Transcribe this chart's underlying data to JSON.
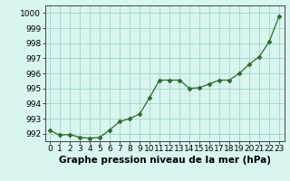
{
  "x": [
    0,
    1,
    2,
    3,
    4,
    5,
    6,
    7,
    8,
    9,
    10,
    11,
    12,
    13,
    14,
    15,
    16,
    17,
    18,
    19,
    20,
    21,
    22,
    23
  ],
  "y": [
    992.2,
    991.9,
    991.95,
    991.75,
    991.7,
    991.75,
    992.25,
    992.8,
    993.0,
    993.3,
    994.4,
    995.55,
    995.55,
    995.55,
    995.0,
    995.05,
    995.3,
    995.55,
    995.55,
    996.0,
    996.6,
    997.1,
    998.1,
    999.8
  ],
  "line_color": "#2d6a2d",
  "marker": "D",
  "marker_size": 2.5,
  "bg_color": "#d8f5f0",
  "grid_color": "#a8d8c8",
  "xlabel": "Graphe pression niveau de la mer (hPa)",
  "xlabel_fontsize": 7.5,
  "ylabel_ticks": [
    992,
    993,
    994,
    995,
    996,
    997,
    998,
    999,
    1000
  ],
  "xtick_labels": [
    "0",
    "1",
    "2",
    "3",
    "4",
    "5",
    "6",
    "7",
    "8",
    "9",
    "10",
    "11",
    "12",
    "13",
    "14",
    "15",
    "16",
    "17",
    "18",
    "19",
    "20",
    "21",
    "22",
    "23"
  ],
  "xlim": [
    -0.5,
    23.5
  ],
  "ylim": [
    991.5,
    1000.5
  ],
  "tick_fontsize": 6.5
}
